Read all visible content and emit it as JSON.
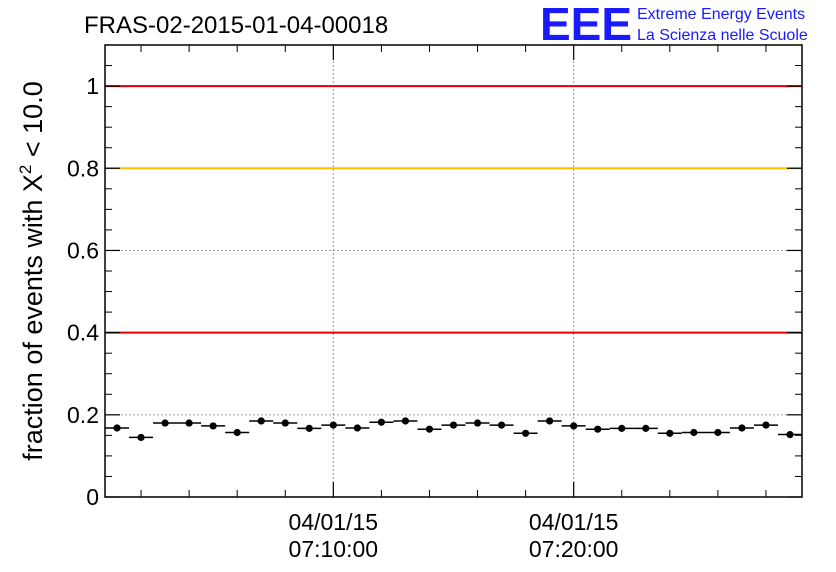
{
  "colors": {
    "ref_red": "#e00000",
    "ref_yellow": "#ffc000",
    "grid": "#999999",
    "points": "#000000",
    "logo": "#1a1aff"
  },
  "header": {
    "run_title": "FRAS-02-2015-01-04-00018"
  },
  "logo": {
    "mark": "EEE",
    "line1": "Extreme Energy Events",
    "line2": "La Scienza nelle Scuole"
  },
  "chart_data": {
    "type": "scatter",
    "title": "FRAS-02-2015-01-04-00018",
    "ylabel_prefix": "fraction of events with X",
    "ylabel_sup": "2",
    "ylabel_suffix": " < 10.0",
    "xlabel": "",
    "x_unit": "minutes after 07:00:00 on 04/01/15",
    "xlim": [
      0.25,
      14.75
    ],
    "ylim": [
      0,
      1.1
    ],
    "y_ticks": [
      {
        "value": 0,
        "label": "0"
      },
      {
        "value": 0.2,
        "label": "0.2"
      },
      {
        "value": 0.4,
        "label": "0.4"
      },
      {
        "value": 0.6,
        "label": "0.6"
      },
      {
        "value": 0.8,
        "label": "0.8"
      },
      {
        "value": 1.0,
        "label": "1"
      }
    ],
    "x_ticks": [
      {
        "value": 5,
        "date": "04/01/15",
        "time": "07:10:00"
      },
      {
        "value": 10,
        "date": "04/01/15",
        "time": "07:20:00"
      }
    ],
    "x_minor_ticks": [
      1,
      2,
      3,
      4,
      6,
      7,
      8,
      9,
      11,
      12,
      13,
      14
    ],
    "y_minor_step": 0.05,
    "grid": true,
    "reference_lines": [
      {
        "y": 1.0,
        "color": "#e00000"
      },
      {
        "y": 0.8,
        "color": "#ffc000"
      },
      {
        "y": 0.4,
        "color": "#e00000"
      }
    ],
    "bin_width": 0.5,
    "points": [
      {
        "x": 0.5,
        "y": 0.168
      },
      {
        "x": 1.0,
        "y": 0.145
      },
      {
        "x": 1.5,
        "y": 0.18
      },
      {
        "x": 2.0,
        "y": 0.18
      },
      {
        "x": 2.5,
        "y": 0.173
      },
      {
        "x": 3.0,
        "y": 0.157
      },
      {
        "x": 3.5,
        "y": 0.185
      },
      {
        "x": 4.0,
        "y": 0.18
      },
      {
        "x": 4.5,
        "y": 0.167
      },
      {
        "x": 5.0,
        "y": 0.175
      },
      {
        "x": 5.5,
        "y": 0.168
      },
      {
        "x": 6.0,
        "y": 0.182
      },
      {
        "x": 6.5,
        "y": 0.185
      },
      {
        "x": 7.0,
        "y": 0.165
      },
      {
        "x": 7.5,
        "y": 0.175
      },
      {
        "x": 8.0,
        "y": 0.18
      },
      {
        "x": 8.5,
        "y": 0.175
      },
      {
        "x": 9.0,
        "y": 0.155
      },
      {
        "x": 9.5,
        "y": 0.185
      },
      {
        "x": 10.0,
        "y": 0.173
      },
      {
        "x": 10.5,
        "y": 0.165
      },
      {
        "x": 11.0,
        "y": 0.167
      },
      {
        "x": 11.5,
        "y": 0.167
      },
      {
        "x": 12.0,
        "y": 0.155
      },
      {
        "x": 12.5,
        "y": 0.157
      },
      {
        "x": 13.0,
        "y": 0.157
      },
      {
        "x": 13.5,
        "y": 0.168
      },
      {
        "x": 14.0,
        "y": 0.175
      },
      {
        "x": 14.5,
        "y": 0.152
      }
    ]
  }
}
